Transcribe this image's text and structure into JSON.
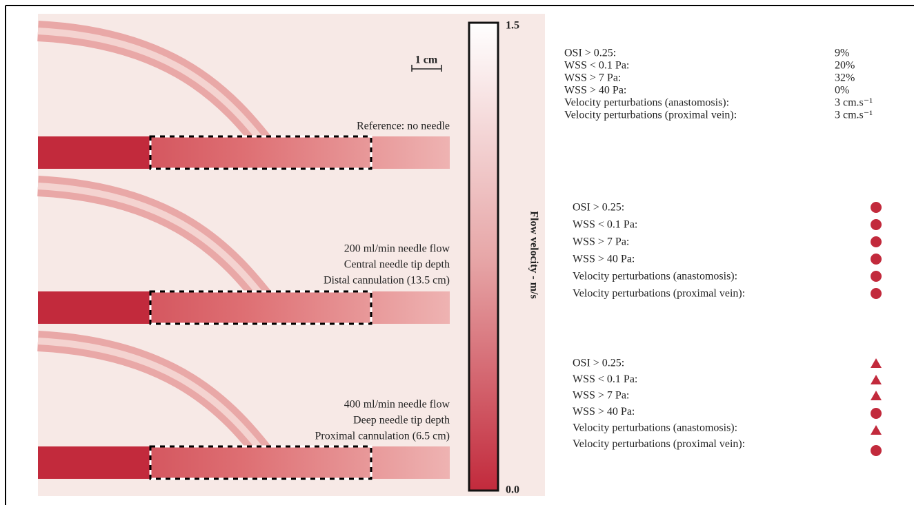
{
  "scale_bar": "1 cm",
  "colorbar": {
    "max_label": "1.5",
    "min_label": "0.0",
    "title": "Flow velocity - m/s"
  },
  "panels": [
    {
      "label": [
        "Reference: no needle"
      ],
      "metrics": [
        {
          "label": "OSI > 0.25:",
          "value": "9%"
        },
        {
          "label": "WSS < 0.1 Pa:",
          "value": "20%"
        },
        {
          "label": "WSS > 7 Pa:",
          "value": "32%"
        },
        {
          "label": "WSS > 40 Pa:",
          "value": "0%"
        },
        {
          "label": "Velocity perturbations (anastomosis):",
          "value": "3 cm.s⁻¹"
        },
        {
          "label": "Velocity perturbations (proximal vein):",
          "value": "3 cm.s⁻¹"
        }
      ]
    },
    {
      "label": [
        "200 ml/min needle flow",
        "Central needle tip depth",
        "Distal cannulation (13.5 cm)"
      ],
      "metrics": [
        {
          "label": "OSI > 0.25:"
        },
        {
          "label": "WSS < 0.1 Pa:"
        },
        {
          "label": "WSS > 7 Pa:"
        },
        {
          "label": "WSS > 40 Pa:"
        },
        {
          "label": "Velocity perturbations (anastomosis):"
        },
        {
          "label": "Velocity perturbations (proximal vein):"
        }
      ]
    },
    {
      "label": [
        "400 ml/min needle flow",
        "Deep needle tip depth",
        "Proximal cannulation (6.5 cm)"
      ],
      "metrics": [
        {
          "label": "OSI > 0.25:"
        },
        {
          "label": "WSS < 0.1 Pa:"
        },
        {
          "label": "WSS > 7 Pa:"
        },
        {
          "label": "WSS > 40 Pa:"
        },
        {
          "label": "Velocity perturbations (anastomosis):"
        },
        {
          "label": "Velocity perturbations (proximal vein):"
        }
      ]
    }
  ]
}
